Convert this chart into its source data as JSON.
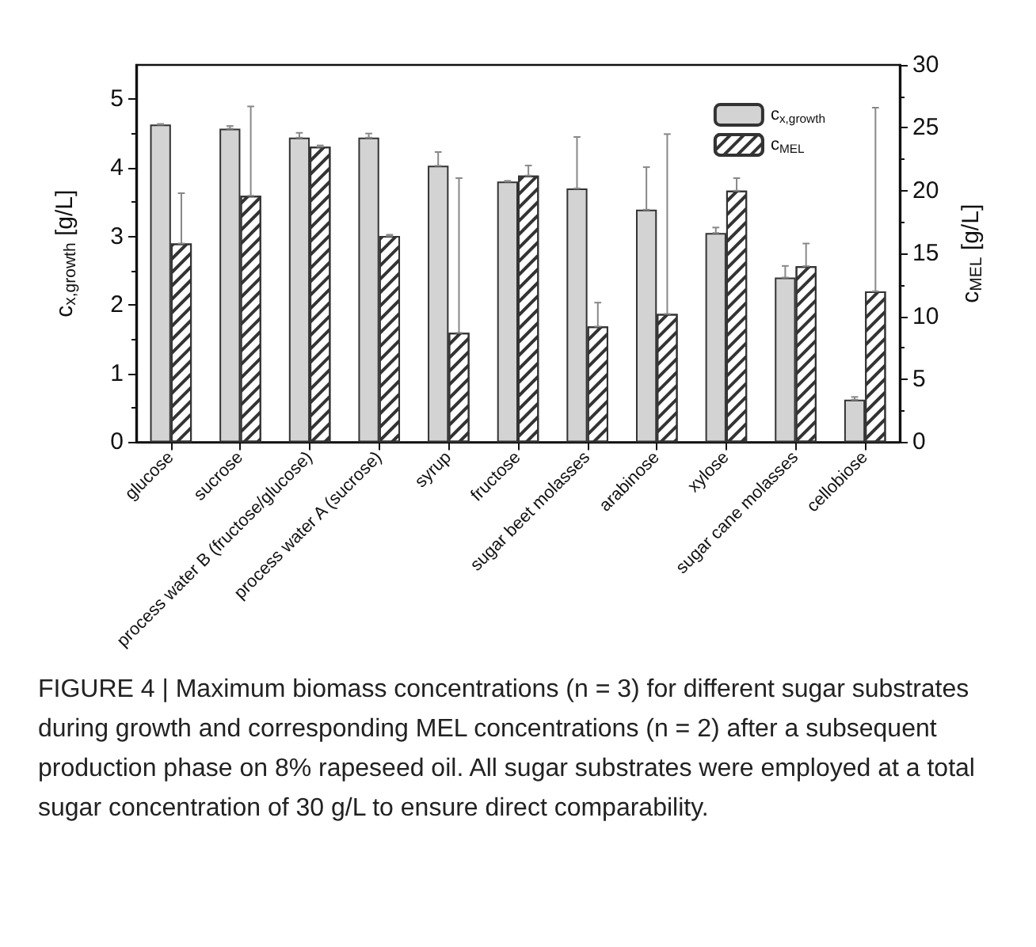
{
  "chart_data": {
    "type": "bar",
    "categories": [
      "glucose",
      "sucrose",
      "process water B (fructose/glucose)",
      "process water A (sucrose)",
      "syrup",
      "fructose",
      "sugar beet molasses",
      "arabinose",
      "xylose",
      "sugar cane molasses",
      "cellobiose"
    ],
    "series": [
      {
        "name": "c$_{x,growth}$",
        "color": "#d3d3d3",
        "values": [
          4.63,
          4.57,
          4.44,
          4.44,
          4.03,
          3.8,
          3.7,
          3.39,
          3.05,
          2.4,
          0.62
        ],
        "errors": [
          [
            4.63,
            4.64
          ],
          [
            4.57,
            4.61
          ],
          [
            4.44,
            4.51
          ],
          [
            4.44,
            4.5
          ],
          [
            4.03,
            4.23
          ],
          [
            3.8,
            3.81
          ],
          [
            3.7,
            4.45
          ],
          [
            3.39,
            4.01
          ],
          [
            3.05,
            3.13
          ],
          [
            2.4,
            2.57
          ],
          [
            0.62,
            0.66
          ]
        ]
      },
      {
        "name": "c$_{MEL}$",
        "color": "#ffffff",
        "axis": "y2",
        "values": [
          15.8,
          19.6,
          23.5,
          16.4,
          8.7,
          21.2,
          9.2,
          10.2,
          20.0,
          14.0,
          12.0
        ],
        "errors": [
          [
            15.8,
            19.8
          ],
          [
            19.6,
            26.7
          ],
          [
            23.5,
            23.6
          ],
          [
            16.4,
            16.5
          ],
          [
            8.7,
            21.0
          ],
          [
            21.2,
            22.0
          ],
          [
            9.2,
            11.1
          ],
          [
            10.2,
            24.5
          ],
          [
            20.0,
            21.0
          ],
          [
            14.0,
            15.8
          ],
          [
            12.0,
            26.6
          ]
        ]
      }
    ],
    "ylabel": "c$_{x,growth}$ [g/L]",
    "y2label": "c$_{MEL}$ [g/L]",
    "ylim": [
      0,
      5.5
    ],
    "yticks": [
      0,
      1,
      2,
      3,
      4,
      5
    ],
    "y2lim": [
      0,
      30
    ],
    "y2ticks": [
      0,
      5,
      10,
      15,
      20,
      25,
      30
    ],
    "grid": false,
    "legend": "top right",
    "annotations": [
      "FIGURE 4 | Maximum biomass concentrations (n = 3) for different sugar substrates during growth and corresponding MEL concentrations (n = 2) after a subsequent production phase on 8% rapeseed oil. All sugar substrates were employed at a total sugar concentration of 30 g/L to ensure direct comparability."
    ]
  }
}
